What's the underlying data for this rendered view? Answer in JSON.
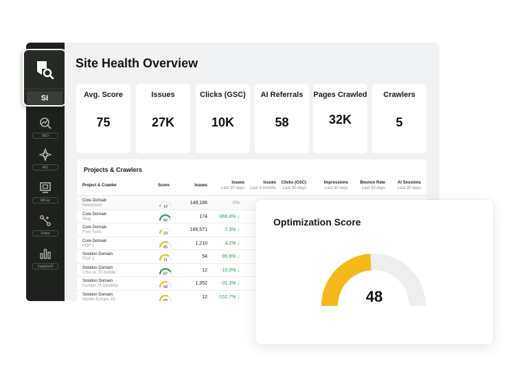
{
  "app": {
    "short_label": "SI"
  },
  "sidebar": {
    "items": [
      {
        "label": "SEO",
        "icon": "chart-search-icon"
      },
      {
        "label": "AIO",
        "icon": "sparkle-icon"
      },
      {
        "label": "MFour",
        "icon": "monitor-icon"
      },
      {
        "label": "Dottie",
        "icon": "nodes-icon"
      },
      {
        "label": "Insights24",
        "icon": "bar-chart-icon"
      }
    ]
  },
  "page": {
    "title": "Site Health Overview"
  },
  "cards": [
    {
      "label": "Avg. Score",
      "value": "75"
    },
    {
      "label": "Issues",
      "value": "27K"
    },
    {
      "label": "Clicks (GSC)",
      "value": "10K"
    },
    {
      "label": "AI Referrals",
      "value": "58"
    },
    {
      "label": "Pages Crawled",
      "value": "32K"
    },
    {
      "label": "Crawlers",
      "value": "5"
    }
  ],
  "table": {
    "title": "Projects & Crawlers",
    "headers": {
      "project": "Project & Crawler",
      "score": "Score",
      "issues": "Issues",
      "issues30": {
        "label": "Issues",
        "sub": "Last 30 days"
      },
      "issues3m": {
        "label": "Issues",
        "sub": "Last 3 months"
      },
      "clicks": {
        "label": "Clicks (GSC)",
        "sub": "Last 30 days"
      },
      "impressions": {
        "label": "Impressions",
        "sub": "Last 30 days"
      },
      "bounce": {
        "label": "Bounce Rate",
        "sub": "Last 30 days"
      },
      "ai": {
        "label": "AI Sessions",
        "sub": "Last 30 days"
      }
    },
    "rows": [
      {
        "name": "Core Domain",
        "sub": "Newsroom",
        "score": 12,
        "issues": "149,186",
        "change": "0%",
        "trend": "flat"
      },
      {
        "name": "Core Domain",
        "sub": "Blog",
        "score": 82,
        "issues": "174",
        "change": "-366.8% ↓",
        "trend": "down"
      },
      {
        "name": "Core Domain",
        "sub": "Free Tools",
        "score": 23,
        "issues": "166,571",
        "change": "-7.3% ↓",
        "trend": "down"
      },
      {
        "name": "Core Domain",
        "sub": "PDP 1",
        "score": 65,
        "issues": "1,210",
        "change": "4.2% ↓",
        "trend": "down"
      },
      {
        "name": "Solution Domain",
        "sub": "PDP 2",
        "score": 71,
        "issues": "54",
        "change": "-95.9% ↓",
        "trend": "down"
      },
      {
        "name": "Solution Domain",
        "sub": "USA no JS mobile",
        "score": 87,
        "issues": "12",
        "change": "-10,9% ↓",
        "trend": "down"
      },
      {
        "name": "Solution Domain",
        "sub": "Europe JS Desktop",
        "score": 58,
        "issues": "1,352",
        "change": "-31.3% ↓",
        "trend": "down"
      },
      {
        "name": "Solution Domain",
        "sub": "Mobile Europe JS",
        "score": 65,
        "issues": "12",
        "change": "-152.7% ↓",
        "trend": "down"
      }
    ]
  },
  "optimization": {
    "title": "Optimization Score",
    "value": "48",
    "score": 48,
    "max": 100
  },
  "colors": {
    "gauge_yellow": "#f5b818",
    "gauge_green": "#2e9e6a",
    "gauge_track": "#eceef0",
    "positive_change": "#1f9d55"
  }
}
